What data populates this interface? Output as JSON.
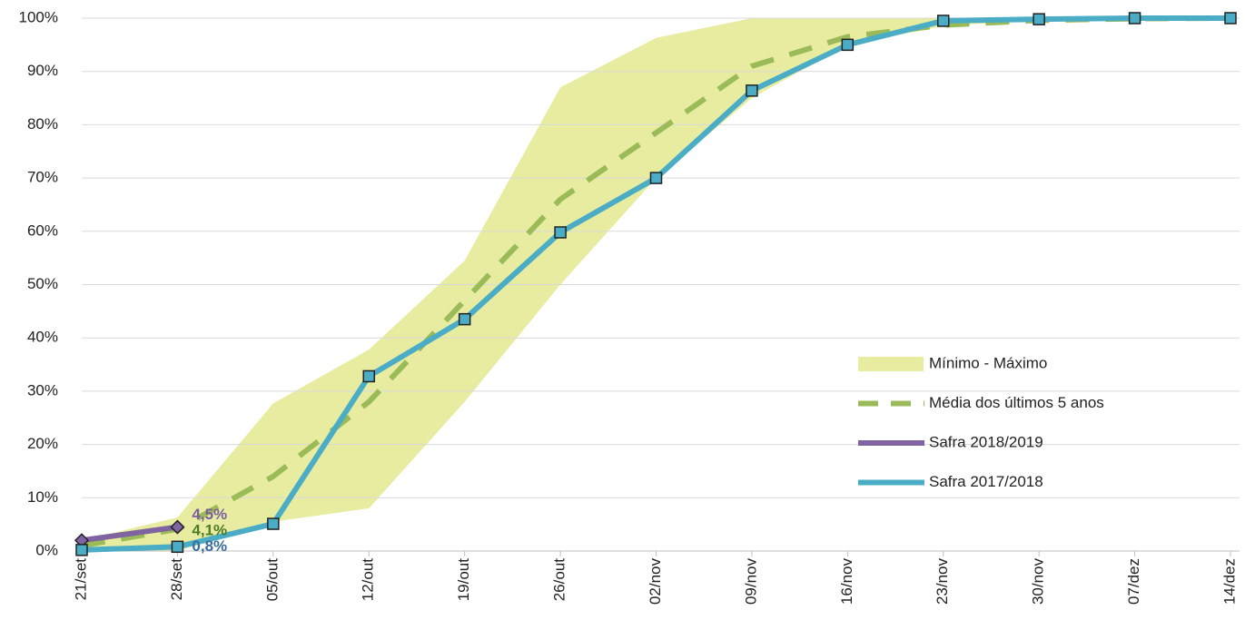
{
  "chart_data": {
    "type": "line",
    "categories": [
      "21/set",
      "28/set",
      "05/out",
      "12/out",
      "19/out",
      "26/out",
      "02/nov",
      "09/nov",
      "16/nov",
      "23/nov",
      "30/nov",
      "07/dez",
      "14/dez"
    ],
    "ylim": [
      0,
      100
    ],
    "yticks": [
      {
        "value": 0,
        "label": "0%"
      },
      {
        "value": 10,
        "label": "10%"
      },
      {
        "value": 20,
        "label": "20%"
      },
      {
        "value": 30,
        "label": "30%"
      },
      {
        "value": 40,
        "label": "40%"
      },
      {
        "value": 50,
        "label": "50%"
      },
      {
        "value": 60,
        "label": "60%"
      },
      {
        "value": 70,
        "label": "70%"
      },
      {
        "value": 80,
        "label": "80%"
      },
      {
        "value": 90,
        "label": "90%"
      },
      {
        "value": 100,
        "label": "100%"
      }
    ],
    "grid": true,
    "legend": "right",
    "band": {
      "name": "Mínimo - Máximo",
      "color": "#e8eca0",
      "min": [
        0,
        0,
        5.5,
        8,
        28,
        50,
        70,
        85,
        95,
        98.5,
        99.7,
        100,
        100
      ],
      "max": [
        2,
        6.3,
        27.7,
        37.8,
        54.5,
        87,
        96.3,
        100,
        100,
        100,
        100,
        100,
        100
      ]
    },
    "series": [
      {
        "name": "Média dos últimos 5 anos",
        "color": "#9bbb59",
        "dash": true,
        "values": [
          1,
          4.1,
          14,
          28,
          47,
          66,
          78.5,
          91,
          96.5,
          98.7,
          99.6,
          99.9,
          100
        ],
        "value_labels": [
          null,
          "4,1%",
          null,
          null,
          null,
          null,
          null,
          null,
          null,
          null,
          null,
          null,
          null
        ],
        "label_color": "#4f7a28"
      },
      {
        "name": "Safra 2018/2019",
        "color": "#8064a2",
        "marker": "diamond",
        "values": [
          2,
          4.5,
          null,
          null,
          null,
          null,
          null,
          null,
          null,
          null,
          null,
          null,
          null
        ],
        "value_labels": [
          null,
          "4,5%",
          null,
          null,
          null,
          null,
          null,
          null,
          null,
          null,
          null,
          null,
          null
        ],
        "label_color": "#7a5f9c"
      },
      {
        "name": "Safra 2017/2018",
        "color": "#4bacc6",
        "marker": "square",
        "values": [
          0.2,
          0.8,
          5.1,
          32.8,
          43.5,
          59.8,
          70,
          86.4,
          95,
          99.5,
          99.8,
          100,
          100
        ],
        "value_labels": [
          null,
          "0,8%",
          null,
          null,
          null,
          null,
          null,
          null,
          null,
          null,
          null,
          null,
          null
        ],
        "label_color": "#3a6c9a"
      }
    ]
  }
}
